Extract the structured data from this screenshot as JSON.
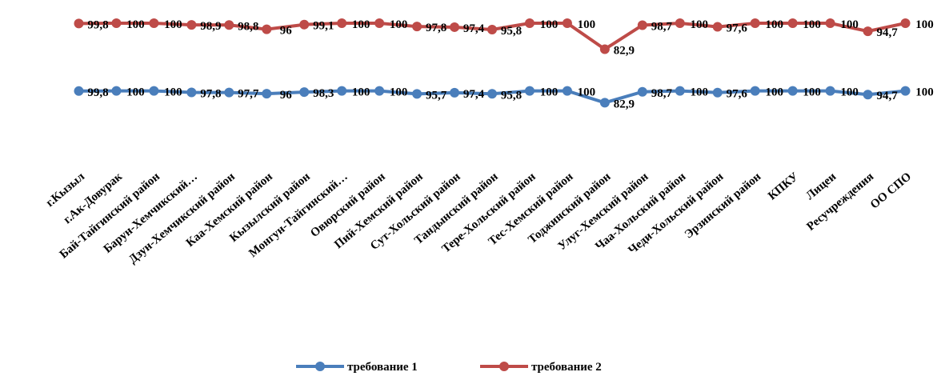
{
  "chart_data": {
    "type": "line",
    "categories": [
      "г.Кызыл",
      "г.Ак-Довурак",
      "Бай-Тайгинский район",
      "Барун-Хемчикский…",
      "Дзун-Хемчикский район",
      "Каа-Хемский район",
      "Кызылский район",
      "Монгун-Тайгинский…",
      "Овюрский район",
      "Пий-Хемский район",
      "Сут-Хольский район",
      "Тандынский район",
      "Тере-Хольский район",
      "Тес-Хемский район",
      "Тоджинский район",
      "Улуг-Хемский район",
      "Чаа-Хольский район",
      "Чеди-Хольский район",
      "Эрзинский район",
      "КПКУ",
      "Лицеи",
      "Ресучреждения",
      "ОО СПО"
    ],
    "series": [
      {
        "name": "требование 1",
        "color": "#4a7ebb",
        "values": [
          99.8,
          100,
          100,
          97.8,
          97.7,
          96,
          98.3,
          100,
          100,
          95.7,
          97.4,
          95.8,
          100,
          100,
          82.9,
          98.7,
          100,
          97.6,
          100,
          100,
          100,
          94.7,
          100
        ],
        "value_labels": [
          "99,8",
          "100",
          "100",
          "97,8",
          "97,7",
          "96",
          "98,3",
          "100",
          "100",
          "95,7",
          "97,4",
          "95,8",
          "100",
          "100",
          "82,9",
          "98,7",
          "100",
          "97,6",
          "100",
          "100",
          "100",
          "94,7",
          "100"
        ]
      },
      {
        "name": "требование 2",
        "color": "#be4b48",
        "axis": "y2",
        "values": [
          99.8,
          100,
          100,
          98.9,
          98.8,
          96,
          99.1,
          100,
          100,
          97.8,
          97.4,
          95.8,
          100,
          100,
          82.9,
          98.7,
          100,
          97.6,
          100,
          100,
          100,
          94.7,
          100
        ],
        "value_labels": [
          "99,8",
          "100",
          "100",
          "98,9",
          "98,8",
          "96",
          "99,1",
          "100",
          "100",
          "97,8",
          "97,4",
          "95,8",
          "100",
          "100",
          "82,9",
          "98,7",
          "100",
          "97,6",
          "100",
          "100",
          "100",
          "94,7",
          "100"
        ]
      }
    ],
    "ylim": [
      0,
      220
    ],
    "y2lim": [
      10,
      110
    ],
    "legend": "bottom"
  }
}
